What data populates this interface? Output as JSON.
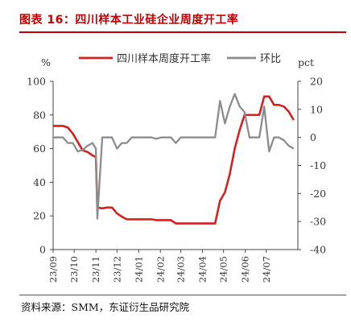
{
  "header": {
    "title": "图表 16：四川样本工业硅企业周度开工率"
  },
  "footer": {
    "source": "资料来源：SMM，东证衍生品研究院"
  },
  "colors": {
    "accent": "#c00000",
    "series1": "#d42020",
    "series2": "#8c8c8c"
  },
  "chart_data": {
    "type": "line",
    "left_unit": "%",
    "right_unit": "pct",
    "left_axis": {
      "ylim": [
        0,
        100
      ],
      "ticks": [
        0,
        20,
        40,
        60,
        80,
        100
      ]
    },
    "right_axis": {
      "ylim": [
        -40,
        20
      ],
      "ticks": [
        -40,
        -30,
        -20,
        -10,
        0,
        10,
        20
      ]
    },
    "x_range": [
      "2023-09-01",
      "2024-08-15"
    ],
    "x_ticks": [
      "23/09",
      "23/10",
      "23/11",
      "23/12",
      "24/01",
      "24/02",
      "24/03",
      "24/04",
      "24/05",
      "24/06",
      "24/07"
    ],
    "x_tick_dates": [
      "2023-09-01",
      "2023-10-01",
      "2023-11-01",
      "2023-12-01",
      "2024-01-01",
      "2024-02-01",
      "2024-03-01",
      "2024-04-01",
      "2024-05-01",
      "2024-06-01",
      "2024-07-01"
    ],
    "legend_position": "top",
    "series": [
      {
        "name": "四川样本周度开工率",
        "axis": "left",
        "color": "#d42020",
        "points": [
          [
            "2023-09-01",
            73.5
          ],
          [
            "2023-09-08",
            73.5
          ],
          [
            "2023-09-15",
            73.5
          ],
          [
            "2023-09-22",
            72.5
          ],
          [
            "2023-09-29",
            69.0
          ],
          [
            "2023-10-06",
            64.0
          ],
          [
            "2023-10-13",
            59.0
          ],
          [
            "2023-10-20",
            58.0
          ],
          [
            "2023-10-27",
            56.0
          ],
          [
            "2023-11-01",
            55.0
          ],
          [
            "2023-11-03",
            25.0
          ],
          [
            "2023-11-10",
            24.5
          ],
          [
            "2023-11-17",
            25.0
          ],
          [
            "2023-11-24",
            25.0
          ],
          [
            "2023-12-01",
            21.5
          ],
          [
            "2023-12-08",
            19.5
          ],
          [
            "2023-12-15",
            18.0
          ],
          [
            "2023-12-22",
            18.0
          ],
          [
            "2023-12-29",
            18.0
          ],
          [
            "2024-01-05",
            18.0
          ],
          [
            "2024-01-12",
            18.0
          ],
          [
            "2024-01-19",
            18.0
          ],
          [
            "2024-01-26",
            17.5
          ],
          [
            "2024-02-02",
            17.5
          ],
          [
            "2024-02-09",
            17.5
          ],
          [
            "2024-02-16",
            17.5
          ],
          [
            "2024-02-23",
            15.5
          ],
          [
            "2024-03-01",
            15.5
          ],
          [
            "2024-03-08",
            15.5
          ],
          [
            "2024-03-15",
            15.5
          ],
          [
            "2024-03-22",
            15.5
          ],
          [
            "2024-03-29",
            15.5
          ],
          [
            "2024-04-05",
            15.5
          ],
          [
            "2024-04-12",
            15.5
          ],
          [
            "2024-04-19",
            15.5
          ],
          [
            "2024-04-26",
            29.0
          ],
          [
            "2024-05-03",
            34.0
          ],
          [
            "2024-05-10",
            45.0
          ],
          [
            "2024-05-17",
            60.0
          ],
          [
            "2024-05-24",
            71.0
          ],
          [
            "2024-05-31",
            80.0
          ],
          [
            "2024-06-07",
            80.0
          ],
          [
            "2024-06-14",
            80.0
          ],
          [
            "2024-06-21",
            80.0
          ],
          [
            "2024-06-28",
            91.0
          ],
          [
            "2024-07-05",
            91.0
          ],
          [
            "2024-07-12",
            86.0
          ],
          [
            "2024-07-19",
            86.0
          ],
          [
            "2024-07-26",
            85.0
          ],
          [
            "2024-08-02",
            82.0
          ],
          [
            "2024-08-09",
            77.0
          ]
        ]
      },
      {
        "name": "环比",
        "axis": "right",
        "color": "#8c8c8c",
        "points": [
          [
            "2023-09-01",
            0.0
          ],
          [
            "2023-09-08",
            0.0
          ],
          [
            "2023-09-15",
            0.0
          ],
          [
            "2023-09-22",
            -2.0
          ],
          [
            "2023-09-29",
            -2.0
          ],
          [
            "2023-10-06",
            -5.0
          ],
          [
            "2023-10-13",
            -4.5
          ],
          [
            "2023-10-20",
            -3.0
          ],
          [
            "2023-10-27",
            -2.0
          ],
          [
            "2023-11-01",
            -4.0
          ],
          [
            "2023-11-03",
            -29.0
          ],
          [
            "2023-11-10",
            0.0
          ],
          [
            "2023-11-17",
            0.0
          ],
          [
            "2023-11-24",
            0.0
          ],
          [
            "2023-12-01",
            -4.0
          ],
          [
            "2023-12-08",
            -2.0
          ],
          [
            "2023-12-15",
            -2.0
          ],
          [
            "2023-12-22",
            0.0
          ],
          [
            "2023-12-29",
            0.0
          ],
          [
            "2024-01-05",
            0.0
          ],
          [
            "2024-01-12",
            0.0
          ],
          [
            "2024-01-19",
            0.0
          ],
          [
            "2024-01-26",
            -0.5
          ],
          [
            "2024-02-02",
            0.0
          ],
          [
            "2024-02-09",
            0.0
          ],
          [
            "2024-02-16",
            0.0
          ],
          [
            "2024-02-23",
            -2.0
          ],
          [
            "2024-03-01",
            0.0
          ],
          [
            "2024-03-08",
            0.0
          ],
          [
            "2024-03-15",
            0.0
          ],
          [
            "2024-03-22",
            0.0
          ],
          [
            "2024-03-29",
            0.0
          ],
          [
            "2024-04-05",
            0.0
          ],
          [
            "2024-04-12",
            0.0
          ],
          [
            "2024-04-19",
            0.0
          ],
          [
            "2024-04-26",
            13.0
          ],
          [
            "2024-05-03",
            5.0
          ],
          [
            "2024-05-10",
            11.0
          ],
          [
            "2024-05-17",
            15.5
          ],
          [
            "2024-05-24",
            11.0
          ],
          [
            "2024-05-31",
            9.0
          ],
          [
            "2024-06-07",
            0.0
          ],
          [
            "2024-06-14",
            0.0
          ],
          [
            "2024-06-21",
            0.0
          ],
          [
            "2024-06-28",
            11.0
          ],
          [
            "2024-07-05",
            -5.0
          ],
          [
            "2024-07-12",
            0.0
          ],
          [
            "2024-07-19",
            0.0
          ],
          [
            "2024-07-26",
            -1.0
          ],
          [
            "2024-08-02",
            -3.0
          ],
          [
            "2024-08-09",
            -4.0
          ]
        ]
      }
    ]
  }
}
